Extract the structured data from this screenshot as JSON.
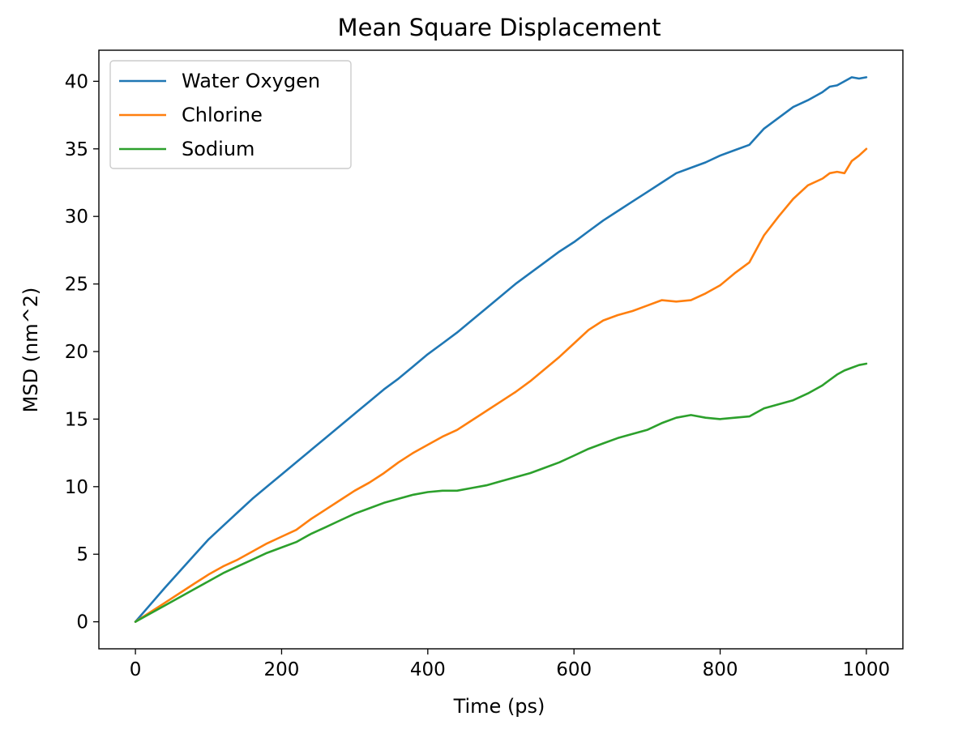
{
  "chart_data": {
    "type": "line",
    "title": "Mean Square Displacement",
    "xlabel": "Time (ps)",
    "ylabel": "MSD (nm^2)",
    "xlim": [
      -50,
      1050
    ],
    "ylim": [
      -2,
      42.3
    ],
    "xticks": [
      0,
      200,
      400,
      600,
      800,
      1000
    ],
    "yticks": [
      0,
      5,
      10,
      15,
      20,
      25,
      30,
      35,
      40
    ],
    "grid": false,
    "legend_position": "upper-left",
    "x": [
      0,
      20,
      40,
      60,
      80,
      100,
      120,
      140,
      160,
      180,
      200,
      220,
      240,
      260,
      280,
      300,
      320,
      340,
      360,
      380,
      400,
      420,
      440,
      460,
      480,
      500,
      520,
      540,
      560,
      580,
      600,
      620,
      640,
      660,
      680,
      700,
      720,
      740,
      760,
      780,
      800,
      820,
      840,
      850,
      860,
      880,
      900,
      920,
      940,
      950,
      960,
      970,
      980,
      990,
      1000
    ],
    "series": [
      {
        "name": "Water Oxygen",
        "color": "#1f77b4",
        "values": [
          0,
          1.25,
          2.5,
          3.7,
          4.9,
          6.1,
          7.1,
          8.1,
          9.1,
          10.0,
          10.9,
          11.8,
          12.7,
          13.6,
          14.5,
          15.4,
          16.3,
          17.2,
          18.0,
          18.9,
          19.8,
          20.6,
          21.4,
          22.3,
          23.2,
          24.1,
          25.0,
          25.8,
          26.6,
          27.4,
          28.1,
          28.9,
          29.7,
          30.4,
          31.1,
          31.8,
          32.5,
          33.2,
          33.6,
          34.0,
          34.5,
          34.9,
          35.3,
          35.9,
          36.5,
          37.3,
          38.1,
          38.6,
          39.2,
          39.6,
          39.7,
          40.0,
          40.3,
          40.2,
          40.3
        ]
      },
      {
        "name": "Chlorine",
        "color": "#ff7f0e",
        "values": [
          0,
          0.7,
          1.4,
          2.1,
          2.8,
          3.5,
          4.1,
          4.6,
          5.2,
          5.8,
          6.3,
          6.8,
          7.6,
          8.3,
          9.0,
          9.7,
          10.3,
          11.0,
          11.8,
          12.5,
          13.1,
          13.7,
          14.2,
          14.9,
          15.6,
          16.3,
          17.0,
          17.8,
          18.7,
          19.6,
          20.6,
          21.6,
          22.3,
          22.7,
          23.0,
          23.4,
          23.8,
          23.7,
          23.8,
          24.3,
          24.9,
          25.8,
          26.6,
          27.6,
          28.6,
          30.0,
          31.3,
          32.3,
          32.8,
          33.2,
          33.3,
          33.2,
          34.1,
          34.5,
          35.0
        ]
      },
      {
        "name": "Sodium",
        "color": "#2ca02c",
        "values": [
          0,
          0.6,
          1.2,
          1.8,
          2.4,
          3.0,
          3.6,
          4.1,
          4.6,
          5.1,
          5.5,
          5.9,
          6.5,
          7.0,
          7.5,
          8.0,
          8.4,
          8.8,
          9.1,
          9.4,
          9.6,
          9.7,
          9.7,
          9.9,
          10.1,
          10.4,
          10.7,
          11.0,
          11.4,
          11.8,
          12.3,
          12.8,
          13.2,
          13.6,
          13.9,
          14.2,
          14.7,
          15.1,
          15.3,
          15.1,
          15.0,
          15.1,
          15.2,
          15.5,
          15.8,
          16.1,
          16.4,
          16.9,
          17.5,
          17.9,
          18.3,
          18.6,
          18.8,
          19.0,
          19.1
        ]
      }
    ]
  }
}
